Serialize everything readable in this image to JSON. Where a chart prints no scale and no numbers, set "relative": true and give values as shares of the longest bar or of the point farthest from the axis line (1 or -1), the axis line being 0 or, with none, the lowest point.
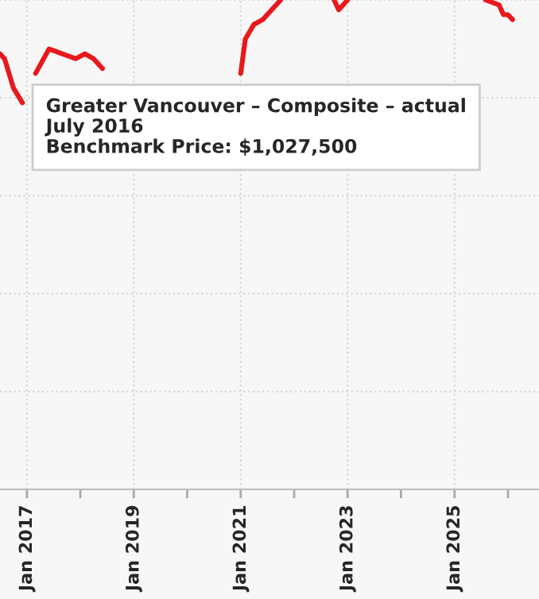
{
  "chart_data": {
    "type": "line",
    "relative": true,
    "x": [
      "2016-07",
      "2016-08",
      "2016-10",
      "2016-12",
      "2017-01",
      "2017-03",
      "2017-06",
      "2017-09",
      "2017-12",
      "2018-02",
      "2018-04",
      "2018-06",
      "2019-09",
      "2021-01",
      "2021-02",
      "2021-04",
      "2021-06",
      "2021-07",
      "2021-10",
      "2022-03",
      "2022-10",
      "2022-11",
      "2023-01",
      "2024-06",
      "2025-08",
      "2025-11",
      "2025-12",
      "2026-01",
      "2026-02"
    ],
    "series": [
      {
        "color": "#e8191c",
        "values": [
          0.89,
          0.88,
          0.82,
          0.79,
          null,
          0.85,
          0.9,
          0.89,
          0.88,
          0.89,
          0.88,
          0.86,
          null,
          0.85,
          0.92,
          0.95,
          0.96,
          0.97,
          1.0,
          null,
          1.0,
          0.98,
          1.0,
          null,
          1.0,
          0.99,
          0.97,
          0.97,
          0.96
        ]
      }
    ],
    "xlim": [
      "2016-07",
      "2026-08"
    ],
    "xticks": [
      {
        "value": "2017-01",
        "label": "Jan 2017"
      },
      {
        "value": "2018-01",
        "label": null
      },
      {
        "value": "2019-01",
        "label": "Jan 2019"
      },
      {
        "value": "2020-01",
        "label": null
      },
      {
        "value": "2021-01",
        "label": "Jan 2021"
      },
      {
        "value": "2022-01",
        "label": null
      },
      {
        "value": "2023-01",
        "label": "Jan 2023"
      },
      {
        "value": "2024-01",
        "label": null
      },
      {
        "value": "2025-01",
        "label": "Jan 2025"
      },
      {
        "value": "2026-01",
        "label": null
      }
    ],
    "grid": true,
    "marker": "none",
    "line_style": "solid",
    "annotations": [
      "Greater Vancouver – Composite – actual\nJuly 2016\nBenchmark Price: $1,027,500"
    ]
  }
}
